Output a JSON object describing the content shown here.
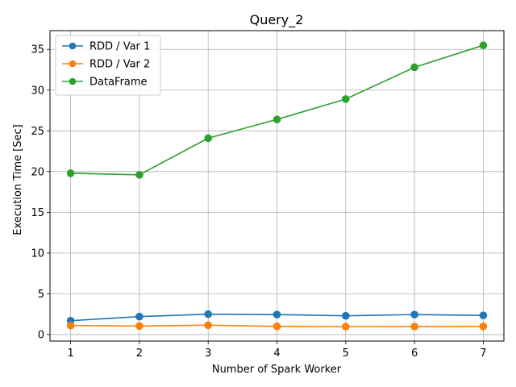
{
  "chart_data": {
    "type": "line",
    "title": "Query_2",
    "xlabel": "Number of Spark Worker",
    "ylabel": "Execution Time [Sec]",
    "x": [
      1,
      2,
      3,
      4,
      5,
      6,
      7
    ],
    "xlim": [
      0.7,
      7.3
    ],
    "ylim": [
      -0.8,
      37.3
    ],
    "xticks": [
      1,
      2,
      3,
      4,
      5,
      6,
      7
    ],
    "yticks": [
      0,
      5,
      10,
      15,
      20,
      25,
      30,
      35
    ],
    "grid": true,
    "legend_position": "top-left",
    "series": [
      {
        "name": "RDD / Var 1",
        "color": "#1f77b4",
        "marker": "circle",
        "values": [
          1.7,
          2.2,
          2.5,
          2.45,
          2.3,
          2.45,
          2.35
        ]
      },
      {
        "name": "RDD / Var 2",
        "color": "#ff7f0e",
        "marker": "circle",
        "values": [
          1.1,
          1.05,
          1.15,
          1.0,
          0.97,
          0.98,
          1.0
        ]
      },
      {
        "name": "DataFrame",
        "color": "#2ca02c",
        "marker": "circle",
        "values": [
          19.8,
          19.6,
          24.1,
          26.4,
          28.9,
          32.8,
          35.5
        ]
      }
    ]
  }
}
